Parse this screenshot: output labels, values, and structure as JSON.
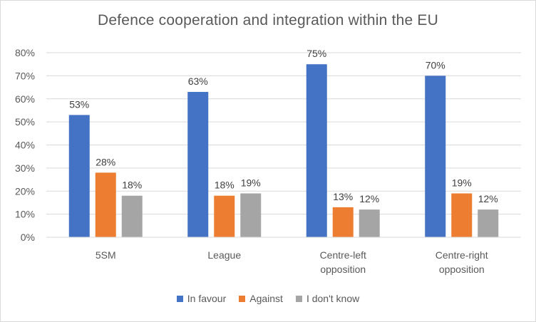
{
  "chart_data": {
    "type": "bar",
    "title": "Defence cooperation and integration within the EU",
    "categories": [
      [
        "5SM"
      ],
      [
        "League"
      ],
      [
        "Centre-left",
        "opposition"
      ],
      [
        "Centre-right",
        "opposition"
      ]
    ],
    "series": [
      {
        "name": "In favour",
        "color": "#4472c4",
        "values": [
          53,
          63,
          75,
          70
        ]
      },
      {
        "name": "Against",
        "color": "#ed7d31",
        "values": [
          28,
          18,
          13,
          19
        ]
      },
      {
        "name": "I don't know",
        "color": "#a5a5a5",
        "values": [
          18,
          19,
          12,
          12
        ]
      }
    ],
    "ylim": [
      0,
      80
    ],
    "yticks": [
      0,
      10,
      20,
      30,
      40,
      50,
      60,
      70,
      80
    ],
    "value_suffix": "%",
    "grid": true,
    "legend_position": "bottom"
  }
}
